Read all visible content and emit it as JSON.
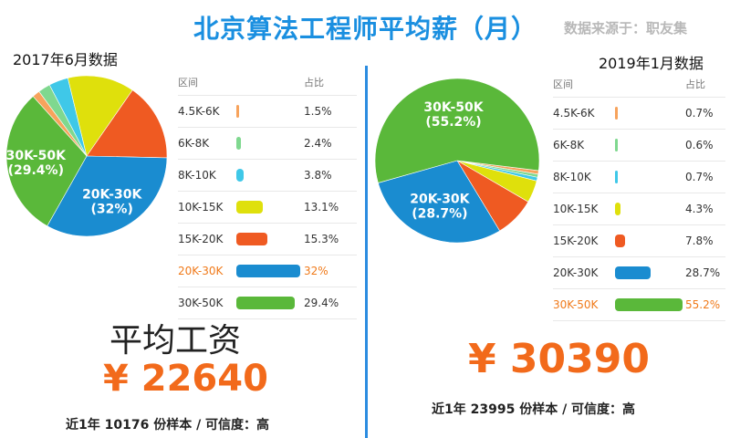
{
  "title": "北京算法工程师平均薪（月）",
  "source": "数据来源于：职友集",
  "table_headers": {
    "range": "区间",
    "share": "占比"
  },
  "left": {
    "date": "2017年6月数据",
    "avg_label": "平均工资",
    "salary": "¥ 22640",
    "sample": "近1年 10176 份样本 / 可信度：高"
  },
  "right": {
    "date": "2019年1月数据",
    "salary": "¥ 30390",
    "sample": "近1年 23995 份样本 / 可信度：高"
  },
  "colors": {
    "4.5K-6K": "#f7a35c",
    "6K-8K": "#7fd88f",
    "8K-10K": "#3fc8e8",
    "10K-15K": "#dfe00c",
    "15K-20K": "#ef5a22",
    "20K-30K": "#1a8cd0",
    "30K-50K": "#5ab83a",
    "title": "#1a8fe0",
    "salary": "#f26a1b",
    "highlight": "#f07a1a"
  },
  "chart_data": [
    {
      "type": "pie",
      "title": "2017年6月数据",
      "categories": [
        "4.5K-6K",
        "6K-8K",
        "8K-10K",
        "10K-15K",
        "15K-20K",
        "20K-30K",
        "30K-50K"
      ],
      "values": [
        1.5,
        2.4,
        3.8,
        13.1,
        15.3,
        32,
        29.4
      ],
      "labels": [
        "1.5%",
        "2.4%",
        "3.8%",
        "13.1%",
        "15.3%",
        "32%",
        "29.4%"
      ],
      "highlight": "20K-30K",
      "slice_labels": [
        {
          "category": "20K-30K",
          "line1": "20K-30K",
          "line2": "(32%)"
        },
        {
          "category": "30K-50K",
          "line1": "30K-50K",
          "line2": "(29.4%)"
        }
      ]
    },
    {
      "type": "pie",
      "title": "2019年1月数据",
      "categories": [
        "4.5K-6K",
        "6K-8K",
        "8K-10K",
        "10K-15K",
        "15K-20K",
        "20K-30K",
        "30K-50K"
      ],
      "values": [
        0.7,
        0.6,
        0.7,
        4.3,
        7.8,
        28.7,
        55.2
      ],
      "labels": [
        "0.7%",
        "0.6%",
        "0.7%",
        "4.3%",
        "7.8%",
        "28.7%",
        "55.2%"
      ],
      "highlight": "30K-50K",
      "slice_labels": [
        {
          "category": "30K-50K",
          "line1": "30K-50K",
          "line2": "(55.2%)"
        },
        {
          "category": "20K-30K",
          "line1": "20K-30K",
          "line2": "(28.7%)"
        }
      ]
    }
  ]
}
